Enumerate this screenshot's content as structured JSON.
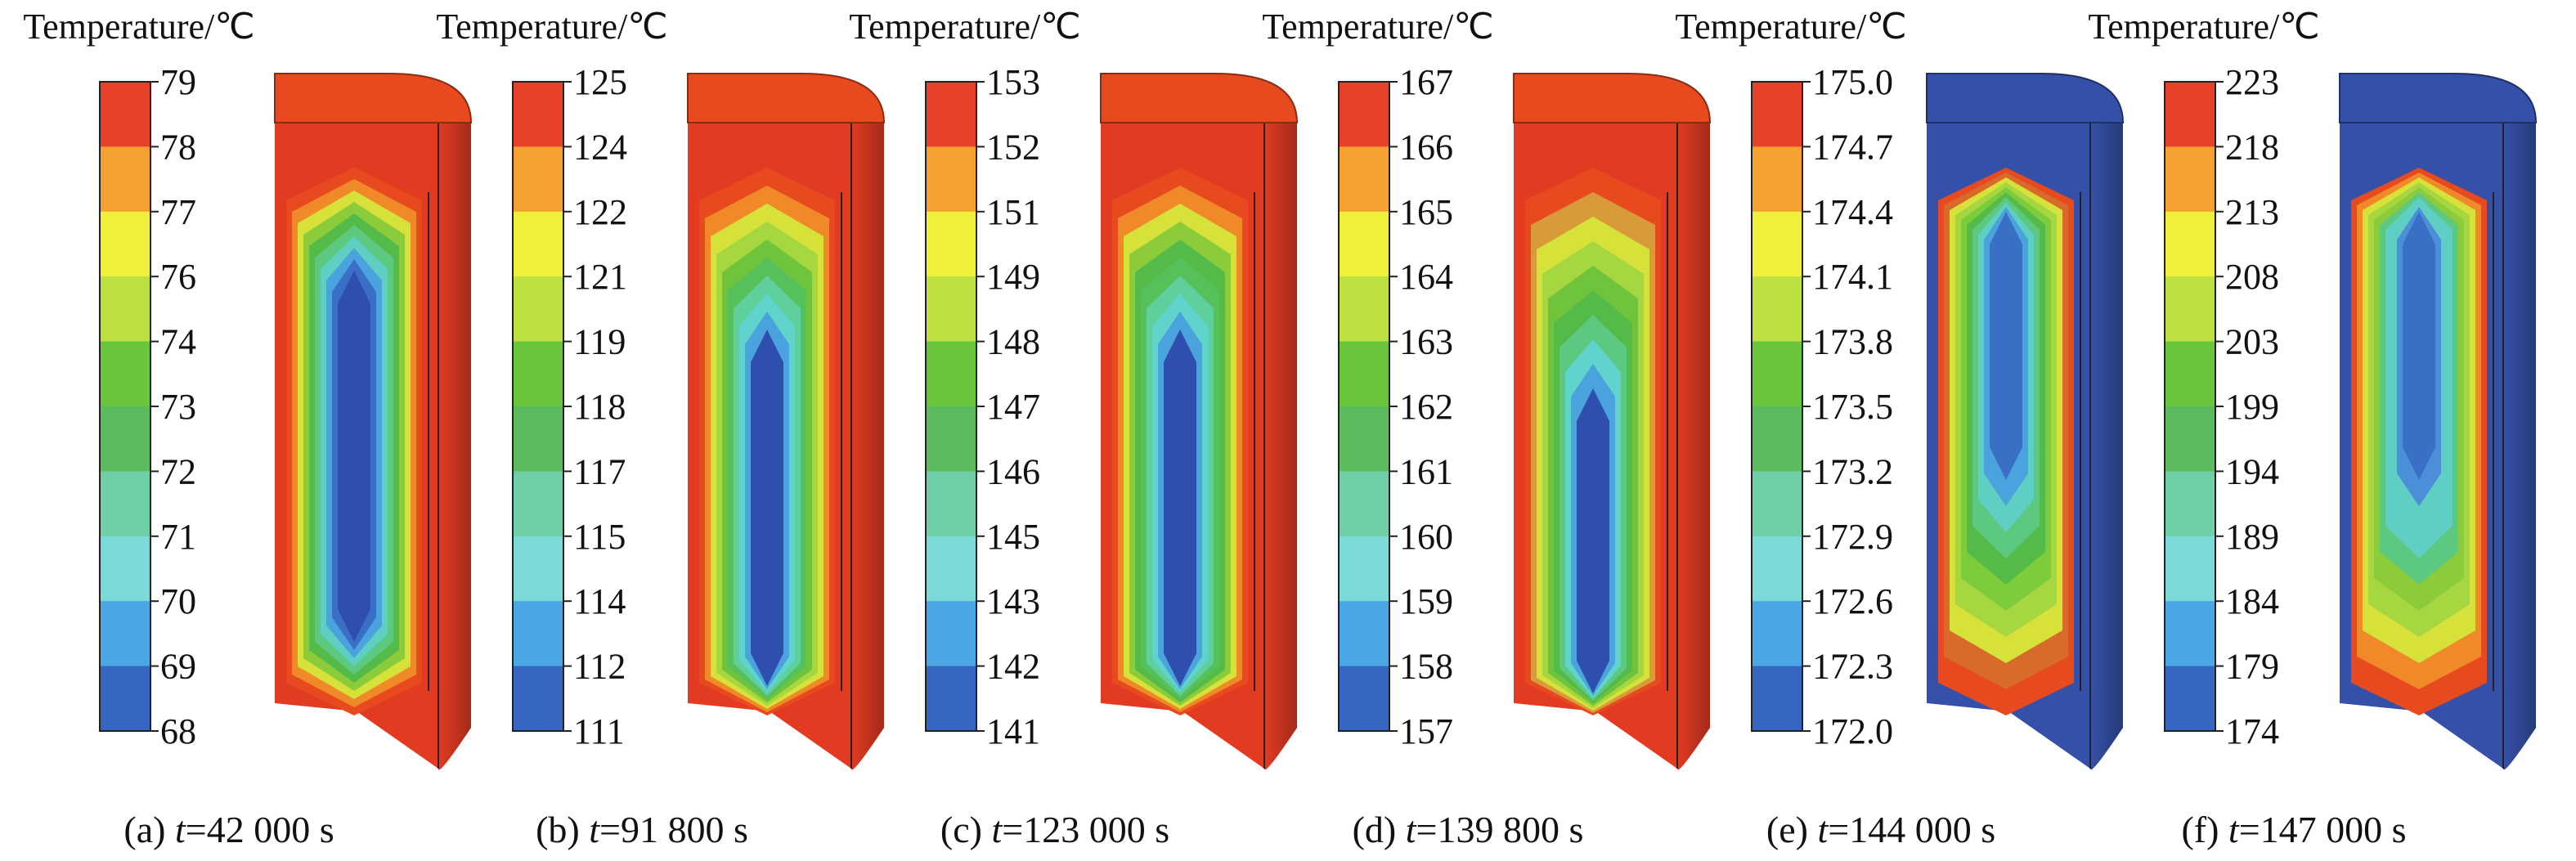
{
  "figure": {
    "panels": [
      {
        "id": "a",
        "legend_title": "Temperature/℃",
        "legend_ticks": [
          "79",
          "78",
          "77",
          "76",
          "74",
          "73",
          "72",
          "71",
          "70",
          "69",
          "68"
        ],
        "caption_prefix": "(a) ",
        "caption_var": "t",
        "caption_value": "=42 000 s",
        "interior": {
          "type": "cold_core",
          "top": "#e64a1e",
          "bands": [
            "#e64a1e",
            "#f08a28",
            "#d6e23a",
            "#8ccc3a",
            "#55bb48",
            "#5cc880",
            "#5fcfc4",
            "#4aa3dc",
            "#3a6fc6",
            "#2f4fae"
          ]
        }
      },
      {
        "id": "b",
        "legend_title": "Temperature/℃",
        "legend_ticks": [
          "125",
          "124",
          "122",
          "121",
          "119",
          "118",
          "117",
          "115",
          "114",
          "112",
          "111"
        ],
        "caption_prefix": "(b) ",
        "caption_var": "t",
        "caption_value": "=91 800 s",
        "interior": {
          "type": "cool_bottom",
          "top": "#e64a1e",
          "bands": [
            "#e64a1e",
            "#f08a28",
            "#d6e23a",
            "#a6d640",
            "#6fc43c",
            "#56c05a",
            "#5fcf9c",
            "#5fd3cc",
            "#4aa3dc",
            "#2f4fae"
          ]
        }
      },
      {
        "id": "c",
        "legend_title": "Temperature/℃",
        "legend_ticks": [
          "153",
          "152",
          "151",
          "149",
          "148",
          "147",
          "146",
          "145",
          "143",
          "142",
          "141"
        ],
        "caption_prefix": "(c) ",
        "caption_var": "t",
        "caption_value": "=123 000 s",
        "interior": {
          "type": "cool_bottom",
          "top": "#e64a1e",
          "bands": [
            "#e64a1e",
            "#f08a28",
            "#d6e23a",
            "#8ccc3a",
            "#55bb48",
            "#56c05a",
            "#5fcf9c",
            "#5fd3cc",
            "#4aa3dc",
            "#2f4fae"
          ]
        }
      },
      {
        "id": "d",
        "legend_title": "Temperature/℃",
        "legend_ticks": [
          "167",
          "166",
          "165",
          "164",
          "163",
          "162",
          "161",
          "160",
          "159",
          "158",
          "157"
        ],
        "caption_prefix": "(d) ",
        "caption_var": "t",
        "caption_value": "=139 800 s",
        "interior": {
          "type": "warm_top",
          "top": "#e64a1e",
          "bands": [
            "#e64a1e",
            "#d99a3a",
            "#d6e23a",
            "#a6d640",
            "#6fc43c",
            "#55bb48",
            "#5cc880",
            "#5fd3cc",
            "#4aa3dc",
            "#2f4fae"
          ]
        }
      },
      {
        "id": "e",
        "legend_title": "Temperature/℃",
        "legend_ticks": [
          "175.0",
          "174.7",
          "174.4",
          "174.1",
          "173.8",
          "173.5",
          "173.2",
          "172.9",
          "172.6",
          "172.3",
          "172.0"
        ],
        "caption_prefix": "(e) ",
        "caption_var": "t",
        "caption_value": "=144 000 s",
        "interior": {
          "type": "hot_core",
          "top": "#3550a8",
          "bands": [
            "#e64a1e",
            "#d86a2a",
            "#d6e23a",
            "#a6d640",
            "#7dcc3c",
            "#55bb48",
            "#5cc880",
            "#5fcfc4",
            "#4aa3dc",
            "#3a6fc6"
          ]
        }
      },
      {
        "id": "f",
        "legend_title": "Temperature/℃",
        "legend_ticks": [
          "223",
          "218",
          "213",
          "208",
          "203",
          "199",
          "194",
          "189",
          "184",
          "179",
          "174"
        ],
        "caption_prefix": "(f) ",
        "caption_var": "t",
        "caption_value": "=147 000 s",
        "interior": {
          "type": "hot_tip",
          "top": "#3550a8",
          "bands": [
            "#e64a1e",
            "#f08a28",
            "#d6e23a",
            "#a6d640",
            "#8ccc3a",
            "#5cc880",
            "#5fcfc4",
            "#5fcfc4",
            "#4a8fd8",
            "#3a6fc6"
          ]
        }
      }
    ],
    "legend_colors": [
      "#e8412a",
      "#f5a030",
      "#f0ef3a",
      "#bce040",
      "#69c63c",
      "#5bbb5e",
      "#6fd0a8",
      "#7dd8d8",
      "#4ba6e4",
      "#3766c2"
    ]
  }
}
